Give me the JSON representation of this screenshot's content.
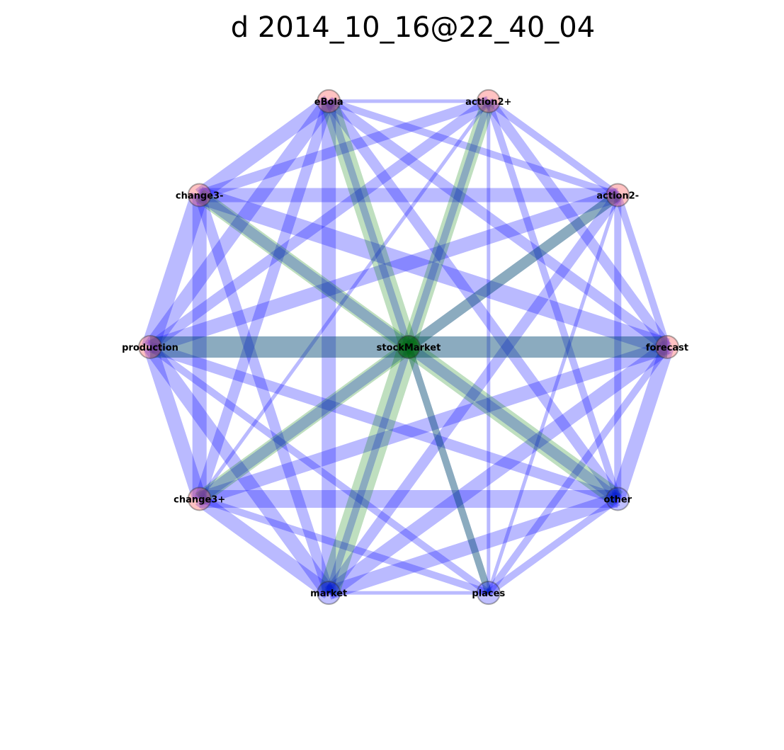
{
  "title": "d 2014_10_16@22_40_04",
  "colors": {
    "edge": "#0000ff",
    "hub_edge": "#008000",
    "outer_node_fill": "#ff6666",
    "hub_node_fill": "#006400"
  },
  "graph": {
    "hub": {
      "id": "stockMarket",
      "label": "stockMarket"
    },
    "nodes": [
      {
        "id": "eBola",
        "label": "eBola",
        "tint": "pink"
      },
      {
        "id": "action2+",
        "label": "action2+",
        "tint": "pink"
      },
      {
        "id": "action2-",
        "label": "action2-",
        "tint": "pink"
      },
      {
        "id": "forecast",
        "label": "forecast",
        "tint": "pink"
      },
      {
        "id": "other",
        "label": "other",
        "tint": "blue"
      },
      {
        "id": "places",
        "label": "places",
        "tint": "blue"
      },
      {
        "id": "market",
        "label": "market",
        "tint": "blue"
      },
      {
        "id": "change3+",
        "label": "change3+",
        "tint": "pink"
      },
      {
        "id": "production",
        "label": "production",
        "tint": "pink"
      },
      {
        "id": "change3-",
        "label": "change3-",
        "tint": "pink"
      }
    ],
    "edges": [
      [
        "eBola",
        "action2+",
        1
      ],
      [
        "eBola",
        "action2-",
        2
      ],
      [
        "eBola",
        "forecast",
        3
      ],
      [
        "eBola",
        "other",
        3
      ],
      [
        "eBola",
        "places",
        2
      ],
      [
        "eBola",
        "market",
        4
      ],
      [
        "eBola",
        "change3+",
        3
      ],
      [
        "eBola",
        "production",
        4
      ],
      [
        "eBola",
        "change3-",
        4
      ],
      [
        "action2+",
        "action2-",
        2
      ],
      [
        "action2+",
        "forecast",
        3
      ],
      [
        "action2+",
        "other",
        2
      ],
      [
        "action2+",
        "places",
        1
      ],
      [
        "action2+",
        "market",
        2
      ],
      [
        "action2+",
        "change3+",
        1
      ],
      [
        "action2+",
        "production",
        3
      ],
      [
        "action2+",
        "change3-",
        3
      ],
      [
        "action2-",
        "forecast",
        2
      ],
      [
        "action2-",
        "other",
        2
      ],
      [
        "action2-",
        "places",
        1
      ],
      [
        "action2-",
        "market",
        3
      ],
      [
        "action2-",
        "change3+",
        3
      ],
      [
        "action2-",
        "production",
        4
      ],
      [
        "action2-",
        "change3-",
        4
      ],
      [
        "forecast",
        "other",
        4
      ],
      [
        "forecast",
        "places",
        2
      ],
      [
        "forecast",
        "market",
        4
      ],
      [
        "forecast",
        "change3+",
        4
      ],
      [
        "forecast",
        "production",
        6
      ],
      [
        "forecast",
        "change3-",
        5
      ],
      [
        "other",
        "places",
        2
      ],
      [
        "other",
        "market",
        4
      ],
      [
        "other",
        "change3+",
        5
      ],
      [
        "other",
        "production",
        3
      ],
      [
        "other",
        "change3-",
        3
      ],
      [
        "places",
        "market",
        1
      ],
      [
        "places",
        "change3+",
        2
      ],
      [
        "places",
        "production",
        2
      ],
      [
        "market",
        "change3+",
        4
      ],
      [
        "market",
        "production",
        4
      ],
      [
        "market",
        "change3-",
        3
      ],
      [
        "change3+",
        "production",
        4
      ],
      [
        "change3+",
        "change3-",
        4
      ],
      [
        "production",
        "change3-",
        5
      ]
    ],
    "hub_edges": [
      [
        "eBola",
        5
      ],
      [
        "action2+",
        4
      ],
      [
        "action2-",
        3
      ],
      [
        "forecast",
        6
      ],
      [
        "other",
        5
      ],
      [
        "places",
        2
      ],
      [
        "market",
        6
      ],
      [
        "change3+",
        4
      ],
      [
        "production",
        6
      ],
      [
        "change3-",
        4
      ]
    ]
  }
}
